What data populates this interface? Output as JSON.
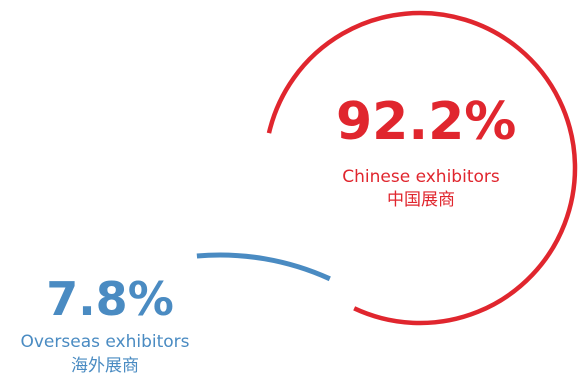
{
  "chart_data": {
    "type": "pie",
    "style": "arc-ring",
    "slices": [
      {
        "key": "china",
        "value": 92.2,
        "value_label": "92.2%",
        "label_en": "Chinese exhibitors",
        "label_zh": "中国展商",
        "color": "#e0262e"
      },
      {
        "key": "overseas",
        "value": 7.8,
        "value_label": "7.8%",
        "label_en": "Overseas exhibitors",
        "label_zh": "海外展商",
        "color": "#4a8bc2"
      }
    ],
    "legend": "none",
    "grid": false
  }
}
